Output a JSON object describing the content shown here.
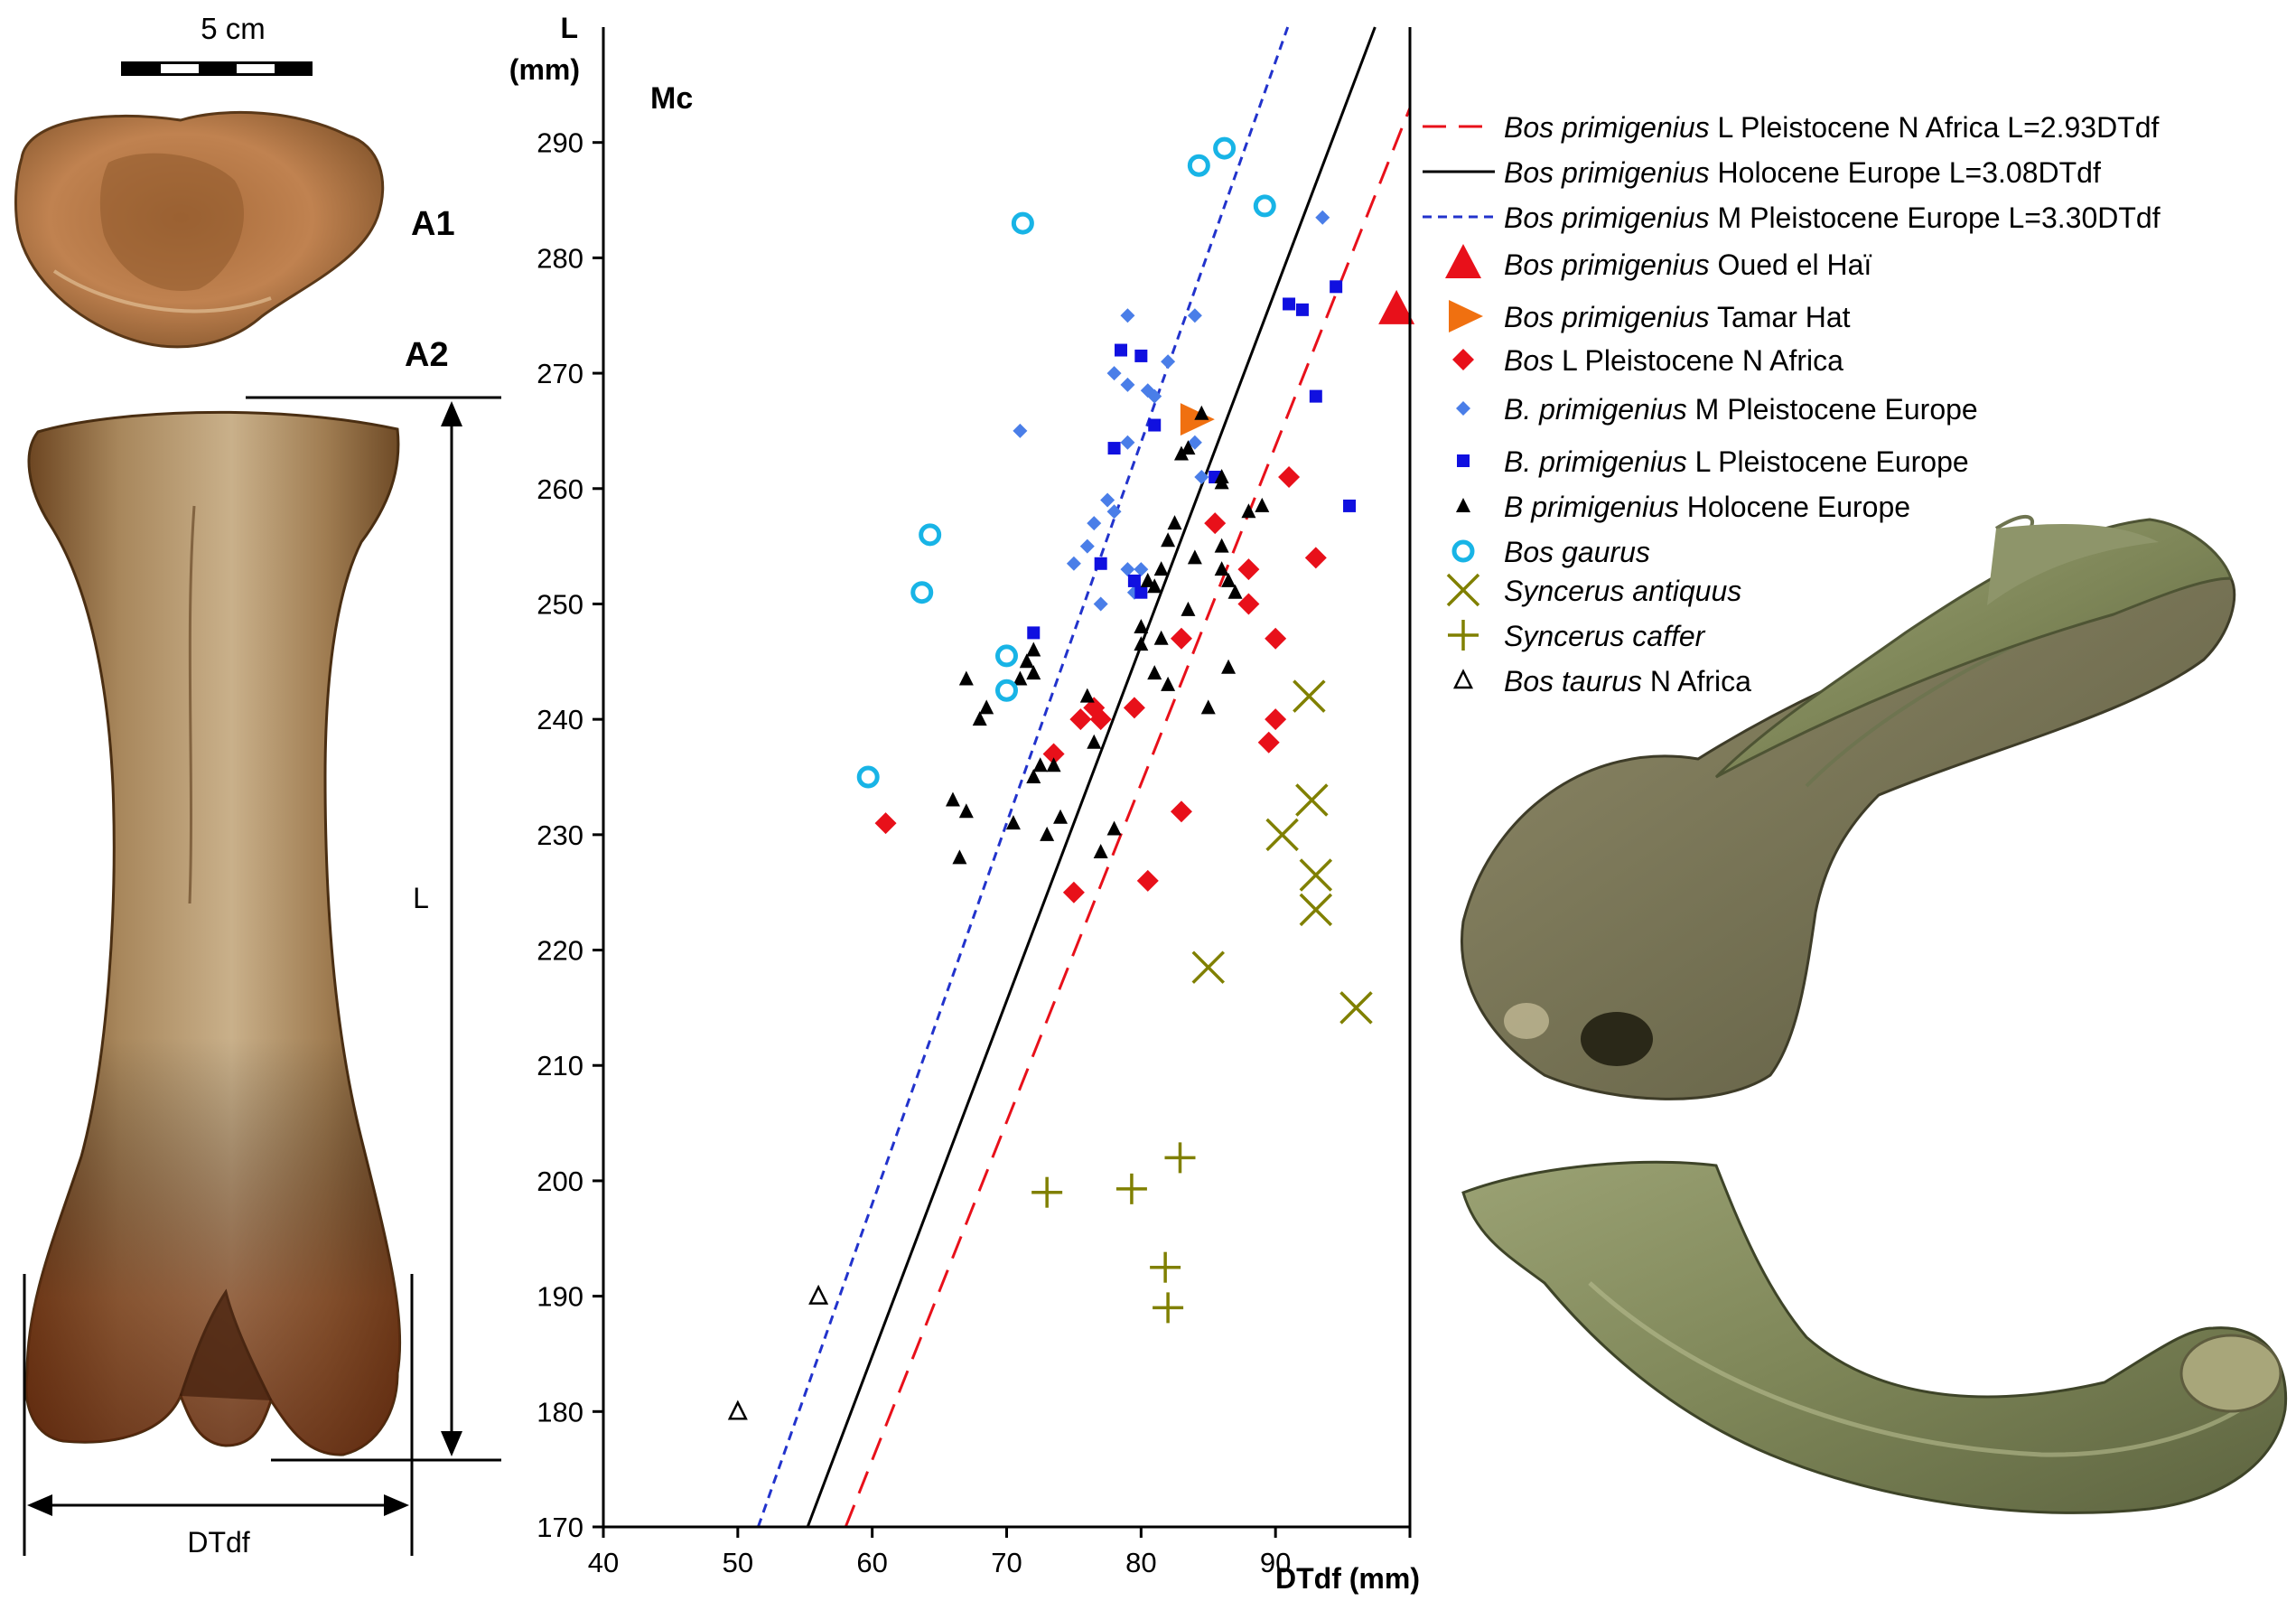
{
  "figure": {
    "scale_label": "5 cm",
    "panel_a1": "A1",
    "panel_a2": "A2",
    "length_label": "L",
    "width_label": "DTdf"
  },
  "chart_data": {
    "type": "scatter",
    "panel_label": "Mc",
    "xlabel": "DTdf (mm)",
    "ylabel": "L\n(mm)",
    "ylabel_line1": "L",
    "ylabel_line2": "(mm)",
    "xlim": [
      40,
      100
    ],
    "ylim": [
      170,
      300
    ],
    "x_ticks": [
      40,
      50,
      60,
      70,
      80,
      90
    ],
    "y_ticks": [
      170,
      180,
      190,
      200,
      210,
      220,
      230,
      240,
      250,
      260,
      270,
      280,
      290
    ],
    "grid": false,
    "legend_position": "right",
    "lines": [
      {
        "name_italic": "Bos primigenius",
        "name_rest": " L Pleistocene N Africa L=2.93DTdf",
        "slope": 2.93,
        "color": "#e8101a",
        "dash": "26,14"
      },
      {
        "name_italic": "Bos primigenius",
        "name_rest": " Holocene Europe  L=3.08DTdf",
        "slope": 3.08,
        "color": "#000000",
        "dash": ""
      },
      {
        "name_italic": "Bos primigenius",
        "name_rest": " M Pleistocene Europe L=3.30DTdf",
        "slope": 3.3,
        "color": "#2233cc",
        "dash": "10,7"
      }
    ],
    "series": [
      {
        "name_italic": "Bos primigenius",
        "name_rest": " Oued el Haï",
        "marker": "triangle-big",
        "color": "#e8101a",
        "points": [
          [
            99,
            275.5
          ]
        ]
      },
      {
        "name_italic": "Bos primigenius",
        "name_rest": " Tamar Hat",
        "marker": "triangle-right",
        "color": "#f07010",
        "points": [
          [
            84,
            266
          ]
        ]
      },
      {
        "name_italic": "Bos",
        "name_rest": " L Pleistocene N Africa",
        "marker": "diamond",
        "color": "#e8101a",
        "points": [
          [
            61,
            231
          ],
          [
            73.5,
            237
          ],
          [
            75,
            225
          ],
          [
            75.5,
            240
          ],
          [
            76.5,
            241
          ],
          [
            77,
            240
          ],
          [
            79.5,
            241
          ],
          [
            80.5,
            226
          ],
          [
            83,
            232
          ],
          [
            83,
            247
          ],
          [
            85.5,
            257
          ],
          [
            88,
            253
          ],
          [
            88,
            250
          ],
          [
            90,
            247
          ],
          [
            90,
            240
          ],
          [
            89.5,
            238
          ],
          [
            91,
            261
          ],
          [
            93,
            254
          ]
        ]
      },
      {
        "name_italic": "B. primigenius",
        "name_rest": " M Pleistocene Europe",
        "marker": "diamond-small",
        "color": "#4a7ee8",
        "points": [
          [
            71,
            265
          ],
          [
            75,
            253.5
          ],
          [
            76,
            255
          ],
          [
            76.5,
            257
          ],
          [
            77,
            250
          ],
          [
            77.5,
            259
          ],
          [
            78,
            258
          ],
          [
            78,
            270
          ],
          [
            79,
            275
          ],
          [
            79,
            264
          ],
          [
            79,
            253
          ],
          [
            79,
            269
          ],
          [
            79.5,
            251
          ],
          [
            80,
            253
          ],
          [
            80.5,
            268.5
          ],
          [
            81,
            268
          ],
          [
            82,
            271
          ],
          [
            84,
            275
          ],
          [
            84.5,
            261
          ],
          [
            84,
            264
          ],
          [
            93.5,
            283.5
          ]
        ]
      },
      {
        "name_italic": "B. primigenius",
        "name_rest": " L Pleistocene Europe",
        "marker": "square",
        "color": "#1010e0",
        "points": [
          [
            72,
            247.5
          ],
          [
            77,
            253.5
          ],
          [
            78,
            263.5
          ],
          [
            78.5,
            272
          ],
          [
            79.5,
            252
          ],
          [
            80,
            251
          ],
          [
            80,
            271.5
          ],
          [
            81,
            265.5
          ],
          [
            85.5,
            261
          ],
          [
            91,
            276
          ],
          [
            92,
            275.5
          ],
          [
            93,
            268
          ],
          [
            94.5,
            277.5
          ],
          [
            95.5,
            258.5
          ]
        ]
      },
      {
        "name_italic": "B primigenius",
        "name_rest": " Holocene Europe",
        "marker": "triangle-small",
        "color": "#000000",
        "points": [
          [
            66,
            233
          ],
          [
            66.5,
            228
          ],
          [
            67,
            232
          ],
          [
            67,
            243.5
          ],
          [
            68,
            240
          ],
          [
            68.5,
            241
          ],
          [
            70.5,
            231
          ],
          [
            71,
            243.5
          ],
          [
            71.5,
            245
          ],
          [
            72,
            244
          ],
          [
            72,
            246
          ],
          [
            72,
            235
          ],
          [
            72.5,
            236
          ],
          [
            73,
            230
          ],
          [
            73.5,
            236
          ],
          [
            74,
            231.5
          ],
          [
            76,
            242
          ],
          [
            76.5,
            238
          ],
          [
            77,
            228.5
          ],
          [
            78,
            230.5
          ],
          [
            80,
            248
          ],
          [
            80,
            246.5
          ],
          [
            80.5,
            252
          ],
          [
            81,
            244
          ],
          [
            81,
            251.5
          ],
          [
            81.5,
            253
          ],
          [
            81.5,
            247
          ],
          [
            82,
            255.5
          ],
          [
            82,
            243
          ],
          [
            82.5,
            257
          ],
          [
            83,
            263
          ],
          [
            83.5,
            249.5
          ],
          [
            83.5,
            263.5
          ],
          [
            84,
            254
          ],
          [
            84.5,
            266.5
          ],
          [
            85,
            241
          ],
          [
            86,
            253
          ],
          [
            86,
            255
          ],
          [
            86,
            260.5
          ],
          [
            86,
            261
          ],
          [
            86.5,
            252
          ],
          [
            86.5,
            244.5
          ],
          [
            87,
            251
          ],
          [
            88,
            258
          ],
          [
            89,
            258.5
          ]
        ]
      },
      {
        "name_italic": "Bos gaurus",
        "name_rest": "",
        "marker": "circle-open",
        "color": "#18b4e6",
        "points": [
          [
            59.7,
            235
          ],
          [
            63.7,
            251
          ],
          [
            64.3,
            256
          ],
          [
            70,
            245.5
          ],
          [
            70,
            242.5
          ],
          [
            71.2,
            283
          ],
          [
            84.3,
            288
          ],
          [
            86.2,
            289.5
          ],
          [
            89.2,
            284.5
          ]
        ]
      },
      {
        "name_italic": "Syncerus antiquus",
        "name_rest": "",
        "marker": "x",
        "color": "#808000",
        "points": [
          [
            85,
            218.5
          ],
          [
            90.5,
            230
          ],
          [
            92.5,
            242
          ],
          [
            92.7,
            233
          ],
          [
            93,
            226.5
          ],
          [
            93,
            223.5
          ],
          [
            96,
            215
          ]
        ]
      },
      {
        "name_italic": "Syncerus caffer",
        "name_rest": "",
        "marker": "plus",
        "color": "#808000",
        "points": [
          [
            73,
            199
          ],
          [
            79.3,
            199.3
          ],
          [
            81.8,
            192.5
          ],
          [
            82,
            189
          ],
          [
            82.9,
            202
          ]
        ]
      },
      {
        "name_italic": "Bos taurus",
        "name_rest": " N Africa",
        "marker": "triangle-open",
        "color": "#000000",
        "points": [
          [
            50,
            180
          ],
          [
            56,
            190
          ]
        ]
      }
    ]
  }
}
